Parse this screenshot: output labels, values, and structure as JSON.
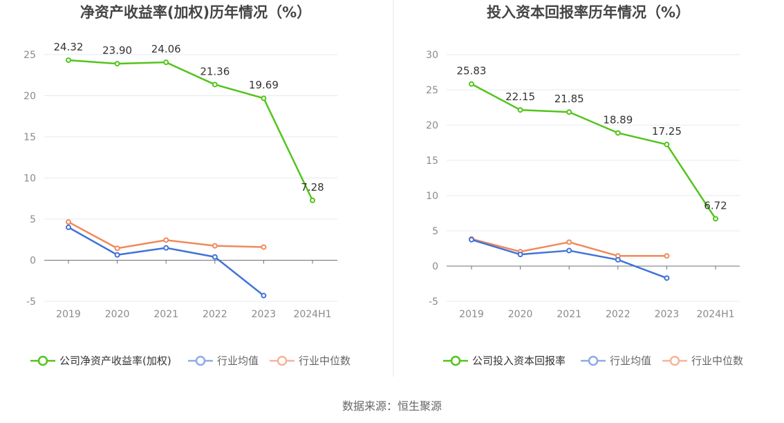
{
  "chart_data": [
    {
      "type": "line",
      "title": "净资产收益率(加权)历年情况（%）",
      "categories": [
        "2019",
        "2020",
        "2021",
        "2022",
        "2023",
        "2024H1"
      ],
      "ylim": [
        -5,
        25
      ],
      "yticks": [
        -5,
        0,
        5,
        10,
        15,
        20,
        25
      ],
      "grid": true,
      "legend_position": "bottom",
      "series": [
        {
          "name": "公司净资产收益率(加权)",
          "color": "#52c41a",
          "values": [
            24.32,
            23.9,
            24.06,
            21.36,
            19.69,
            7.28
          ],
          "labels": [
            "24.32",
            "23.90",
            "24.06",
            "21.36",
            "19.69",
            "7.28"
          ]
        },
        {
          "name": "行业均值",
          "color": "#3f73d9",
          "values": [
            4.0,
            0.65,
            1.5,
            0.4,
            -4.3,
            null
          ]
        },
        {
          "name": "行业中位数",
          "color": "#f0895a",
          "values": [
            4.65,
            1.45,
            2.45,
            1.75,
            1.6,
            null
          ]
        }
      ]
    },
    {
      "type": "line",
      "title": "投入资本回报率历年情况（%）",
      "categories": [
        "2019",
        "2020",
        "2021",
        "2022",
        "2023",
        "2024H1"
      ],
      "ylim": [
        -5,
        30
      ],
      "yticks": [
        -5,
        0,
        5,
        10,
        15,
        20,
        25,
        30
      ],
      "grid": true,
      "legend_position": "bottom",
      "series": [
        {
          "name": "公司投入资本回报率",
          "color": "#52c41a",
          "values": [
            25.83,
            22.15,
            21.85,
            18.89,
            17.25,
            6.72
          ],
          "labels": [
            "25.83",
            "22.15",
            "21.85",
            "18.89",
            "17.25",
            "6.72"
          ]
        },
        {
          "name": "行业均值",
          "color": "#3f73d9",
          "values": [
            3.75,
            1.65,
            2.2,
            0.9,
            -1.7,
            null
          ]
        },
        {
          "name": "行业中位数",
          "color": "#f0895a",
          "values": [
            3.85,
            2.05,
            3.4,
            1.45,
            1.45,
            null
          ]
        }
      ]
    }
  ],
  "source_text": "数据来源：恒生聚源"
}
